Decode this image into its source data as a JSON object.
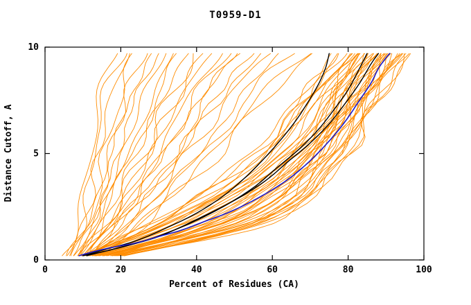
{
  "chart_data": {
    "type": "line",
    "title": "T0959-D1",
    "xlabel": "Percent of Residues (CA)",
    "ylabel": "Distance Cutoff, A",
    "xlim": [
      0,
      100
    ],
    "ylim": [
      0,
      10
    ],
    "xticks": [
      0,
      20,
      40,
      60,
      80,
      100
    ],
    "yticks": [
      0,
      5,
      10
    ],
    "grid": false,
    "legend": "none",
    "frame_color": "#000000",
    "background": "#ffffff",
    "ensemble": {
      "name": "predicted-models-orange",
      "color": "#ff8c00",
      "stroke_width": 0.9,
      "anchor_y": [
        0.2,
        2,
        5,
        8,
        9.7
      ],
      "curves": [
        [
          5,
          9,
          12,
          15,
          18
        ],
        [
          6,
          10,
          13,
          16,
          20
        ],
        [
          6,
          11,
          14,
          18,
          22
        ],
        [
          7,
          12,
          16,
          20,
          24
        ],
        [
          7,
          12,
          17,
          22,
          26
        ],
        [
          8,
          13,
          18,
          23,
          28
        ],
        [
          8,
          14,
          19,
          25,
          30
        ],
        [
          8,
          14,
          20,
          27,
          32
        ],
        [
          9,
          15,
          22,
          29,
          34
        ],
        [
          9,
          16,
          23,
          30,
          36
        ],
        [
          9,
          16,
          24,
          32,
          38
        ],
        [
          10,
          17,
          26,
          34,
          40
        ],
        [
          10,
          18,
          27,
          36,
          42
        ],
        [
          10,
          18,
          28,
          37,
          44
        ],
        [
          11,
          19,
          30,
          39,
          46
        ],
        [
          11,
          20,
          31,
          41,
          48
        ],
        [
          11,
          20,
          32,
          42,
          50
        ],
        [
          12,
          21,
          34,
          44,
          52
        ],
        [
          12,
          22,
          35,
          46,
          55
        ],
        [
          12,
          23,
          36,
          48,
          58
        ],
        [
          13,
          24,
          38,
          50,
          60
        ],
        [
          13,
          25,
          40,
          53,
          63
        ],
        [
          13,
          26,
          42,
          55,
          66
        ],
        [
          14,
          27,
          44,
          58,
          69
        ],
        [
          14,
          28,
          46,
          60,
          72
        ],
        [
          9,
          30,
          55,
          68,
          76
        ],
        [
          10,
          31,
          56,
          69,
          77
        ],
        [
          10,
          32,
          57,
          70,
          78
        ],
        [
          10,
          33,
          58,
          71,
          79
        ],
        [
          11,
          34,
          58,
          72,
          81
        ],
        [
          10,
          34,
          60,
          72,
          80
        ],
        [
          11,
          35,
          61,
          73,
          80
        ],
        [
          11,
          36,
          62,
          74,
          81
        ],
        [
          12,
          36,
          60,
          74,
          84
        ],
        [
          11,
          37,
          63,
          75,
          82
        ],
        [
          12,
          38,
          64,
          76,
          82
        ],
        [
          12,
          39,
          65,
          76,
          83
        ],
        [
          12,
          40,
          66,
          77,
          83
        ],
        [
          13,
          40,
          64,
          78,
          86
        ],
        [
          13,
          41,
          66,
          77,
          84
        ],
        [
          13,
          42,
          67,
          78,
          84
        ],
        [
          13,
          43,
          68,
          78,
          85
        ],
        [
          14,
          44,
          68,
          79,
          85
        ],
        [
          14,
          44,
          67,
          80,
          88
        ],
        [
          14,
          45,
          69,
          79,
          86
        ],
        [
          14,
          46,
          70,
          80,
          86
        ],
        [
          15,
          47,
          70,
          80,
          87
        ],
        [
          15,
          48,
          69,
          82,
          90
        ],
        [
          15,
          48,
          71,
          81,
          87
        ],
        [
          15,
          49,
          71,
          81,
          88
        ],
        [
          16,
          50,
          72,
          82,
          88
        ],
        [
          16,
          51,
          72,
          82,
          89
        ],
        [
          16,
          52,
          71,
          84,
          92
        ],
        [
          16,
          52,
          73,
          83,
          89
        ],
        [
          17,
          53,
          73,
          83,
          90
        ],
        [
          17,
          50,
          70,
          83,
          91
        ],
        [
          17,
          54,
          74,
          84,
          90
        ],
        [
          17,
          55,
          74,
          84,
          91
        ],
        [
          18,
          56,
          75,
          85,
          91
        ],
        [
          18,
          54,
          73,
          85,
          93
        ],
        [
          18,
          57,
          75,
          85,
          92
        ],
        [
          18,
          58,
          76,
          86,
          92
        ],
        [
          19,
          58,
          76,
          86,
          93
        ],
        [
          19,
          59,
          77,
          87,
          93
        ],
        [
          19,
          60,
          77,
          87,
          94
        ],
        [
          20,
          60,
          78,
          88,
          94
        ],
        [
          20,
          61,
          78,
          88,
          95
        ],
        [
          20,
          61,
          79,
          89,
          95
        ],
        [
          21,
          62,
          80,
          89,
          96
        ],
        [
          21,
          63,
          80,
          90,
          96
        ]
      ]
    },
    "highlight_series": [
      {
        "name": "model-black-1",
        "color": "#000000",
        "stroke_width": 1.4,
        "points": [
          [
            10,
            0.2
          ],
          [
            16,
            0.5
          ],
          [
            24,
            0.9
          ],
          [
            32,
            1.5
          ],
          [
            40,
            2.2
          ],
          [
            47,
            3.0
          ],
          [
            53,
            3.9
          ],
          [
            58,
            4.8
          ],
          [
            62,
            5.6
          ],
          [
            66,
            6.5
          ],
          [
            69,
            7.3
          ],
          [
            72,
            8.2
          ],
          [
            74,
            9.0
          ],
          [
            75,
            9.7
          ]
        ]
      },
      {
        "name": "model-black-2",
        "color": "#000000",
        "stroke_width": 1.4,
        "points": [
          [
            10,
            0.2
          ],
          [
            18,
            0.5
          ],
          [
            28,
            1.0
          ],
          [
            38,
            1.7
          ],
          [
            47,
            2.5
          ],
          [
            55,
            3.4
          ],
          [
            61,
            4.3
          ],
          [
            67,
            5.2
          ],
          [
            72,
            6.1
          ],
          [
            76,
            7.0
          ],
          [
            80,
            8.0
          ],
          [
            83,
            9.0
          ],
          [
            85,
            9.7
          ]
        ]
      },
      {
        "name": "model-black-3",
        "color": "#000000",
        "stroke_width": 1.4,
        "points": [
          [
            11,
            0.2
          ],
          [
            20,
            0.6
          ],
          [
            30,
            1.1
          ],
          [
            40,
            1.9
          ],
          [
            50,
            2.8
          ],
          [
            58,
            3.7
          ],
          [
            64,
            4.6
          ],
          [
            70,
            5.5
          ],
          [
            75,
            6.4
          ],
          [
            79,
            7.3
          ],
          [
            83,
            8.3
          ],
          [
            86,
            9.2
          ],
          [
            88,
            9.7
          ]
        ]
      },
      {
        "name": "model-blue",
        "color": "#1a1acd",
        "stroke_width": 1.6,
        "points": [
          [
            9,
            0.2
          ],
          [
            13,
            0.4
          ],
          [
            18,
            0.6
          ],
          [
            24,
            0.8
          ],
          [
            30,
            1.1
          ],
          [
            36,
            1.4
          ],
          [
            42,
            1.8
          ],
          [
            48,
            2.2
          ],
          [
            54,
            2.7
          ],
          [
            60,
            3.3
          ],
          [
            65,
            3.9
          ],
          [
            69,
            4.5
          ],
          [
            73,
            5.2
          ],
          [
            77,
            6.0
          ],
          [
            80,
            6.7
          ],
          [
            83,
            7.5
          ],
          [
            86,
            8.3
          ],
          [
            88,
            9.0
          ],
          [
            90,
            9.5
          ],
          [
            91,
            9.7
          ]
        ]
      }
    ]
  }
}
